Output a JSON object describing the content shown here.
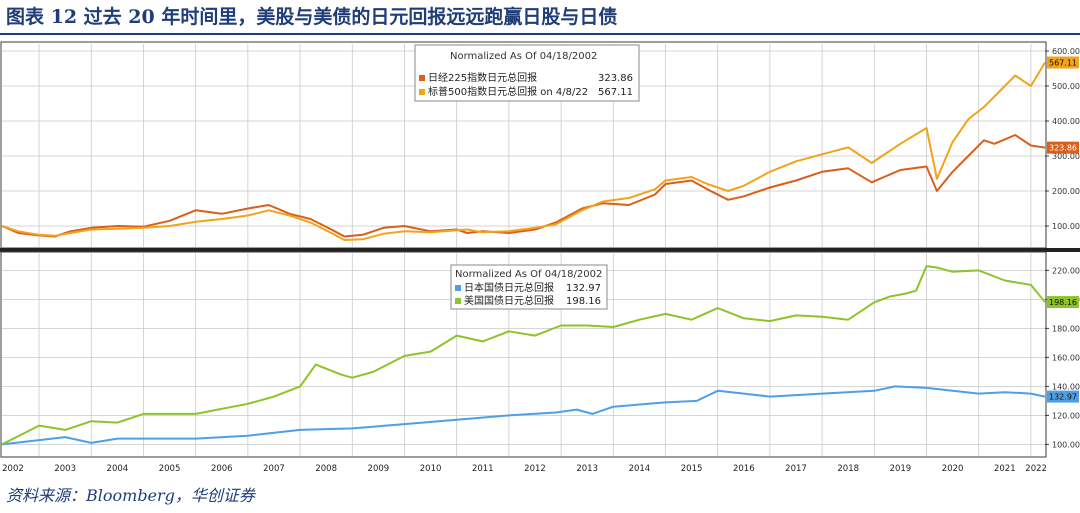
{
  "figure": {
    "title": "图表 12 过去 20 年时间里，美股与美债的日元回报远远跑赢日股与日债",
    "source": "资料来源：Bloomberg，华创证券"
  },
  "colors": {
    "nikkei": "#d95f1a",
    "sp500": "#f2a31b",
    "jgb": "#4f9fe6",
    "ust": "#8cc42a",
    "grid": "#c9c9c9",
    "frame": "#3c3c3c"
  },
  "chart_data": [
    {
      "type": "line",
      "panel": "top",
      "title": "Normalized As Of 04/18/2002",
      "xlim": [
        2002.29,
        2022.27
      ],
      "ylim": [
        40,
        620
      ],
      "yticks": [
        "100.00",
        "200.00",
        "300.00",
        "400.00",
        "500.00",
        "600.00"
      ],
      "ytick_values": [
        100,
        200,
        300,
        400,
        500,
        600
      ],
      "legend_placement": "top-center",
      "series": [
        {
          "name": "日经225指数日元总回报",
          "legend_value": "323.86",
          "last_label": "323.86",
          "color_key": "nikkei",
          "x": [
            2002.29,
            2002.6,
            2003.0,
            2003.3,
            2003.6,
            2004.0,
            2004.5,
            2005.0,
            2005.5,
            2006.0,
            2006.5,
            2007.0,
            2007.4,
            2007.8,
            2008.2,
            2008.6,
            2008.85,
            2009.2,
            2009.6,
            2010.0,
            2010.5,
            2011.0,
            2011.2,
            2011.5,
            2012.0,
            2012.5,
            2012.9,
            2013.4,
            2013.8,
            2014.3,
            2014.8,
            2015.0,
            2015.5,
            2015.8,
            2016.2,
            2016.5,
            2017.0,
            2017.5,
            2018.0,
            2018.5,
            2018.95,
            2019.5,
            2020.0,
            2020.2,
            2020.5,
            2020.8,
            2021.1,
            2021.3,
            2021.7,
            2022.0,
            2022.27
          ],
          "y": [
            100,
            80,
            73,
            70,
            85,
            95,
            100,
            98,
            115,
            145,
            135,
            150,
            160,
            135,
            120,
            90,
            70,
            75,
            95,
            100,
            85,
            90,
            80,
            85,
            80,
            90,
            110,
            150,
            165,
            160,
            190,
            220,
            230,
            205,
            175,
            185,
            210,
            230,
            255,
            265,
            225,
            260,
            270,
            200,
            255,
            300,
            345,
            335,
            360,
            330,
            323.86
          ]
        },
        {
          "name": "标普500指数日元总回报 on 4/8/22",
          "legend_value": "567.11",
          "last_label": "567.11",
          "color_key": "sp500",
          "x": [
            2002.29,
            2002.6,
            2003.0,
            2003.3,
            2003.6,
            2004.0,
            2004.5,
            2005.0,
            2005.5,
            2006.0,
            2006.5,
            2007.0,
            2007.4,
            2007.8,
            2008.2,
            2008.6,
            2008.85,
            2009.2,
            2009.6,
            2010.0,
            2010.5,
            2011.0,
            2011.2,
            2011.5,
            2012.0,
            2012.5,
            2012.9,
            2013.4,
            2013.8,
            2014.3,
            2014.8,
            2015.0,
            2015.5,
            2015.8,
            2016.2,
            2016.5,
            2017.0,
            2017.5,
            2018.0,
            2018.5,
            2018.95,
            2019.5,
            2020.0,
            2020.2,
            2020.5,
            2020.8,
            2021.1,
            2021.3,
            2021.7,
            2022.0,
            2022.27
          ],
          "y": [
            100,
            85,
            75,
            72,
            80,
            90,
            92,
            95,
            100,
            112,
            120,
            130,
            145,
            130,
            110,
            80,
            60,
            62,
            78,
            85,
            82,
            88,
            90,
            82,
            85,
            95,
            105,
            145,
            170,
            180,
            205,
            230,
            240,
            220,
            200,
            215,
            255,
            285,
            305,
            325,
            280,
            335,
            380,
            235,
            340,
            405,
            440,
            470,
            530,
            500,
            567.11
          ]
        }
      ]
    },
    {
      "type": "line",
      "panel": "bottom",
      "title": "Normalized As Of 04/18/2002",
      "xlim": [
        2002.29,
        2022.27
      ],
      "ylim": [
        92,
        232
      ],
      "yticks": [
        "100.00",
        "120.00",
        "140.00",
        "160.00",
        "180.00",
        "200.00",
        "220.00"
      ],
      "ytick_values": [
        100,
        120,
        140,
        160,
        180,
        200,
        220
      ],
      "legend_placement": "top-center",
      "series": [
        {
          "name": "日本国债日元总回报",
          "legend_value": "132.97",
          "last_label": "132.97",
          "color_key": "jgb",
          "x": [
            2002.29,
            2003.0,
            2003.5,
            2004.0,
            2004.5,
            2005.0,
            2006.0,
            2007.0,
            2008.0,
            2009.0,
            2010.0,
            2011.0,
            2012.0,
            2012.9,
            2013.3,
            2013.6,
            2014.0,
            2015.0,
            2015.6,
            2016.0,
            2016.5,
            2017.0,
            2018.0,
            2019.0,
            2019.4,
            2020.0,
            2020.5,
            2021.0,
            2021.5,
            2022.0,
            2022.27
          ],
          "y": [
            100,
            103,
            105,
            101,
            104,
            104,
            104,
            106,
            110,
            111,
            114,
            117,
            120,
            122,
            124,
            121,
            126,
            129,
            130,
            137,
            135,
            133,
            135,
            137,
            140,
            139,
            137,
            135,
            136,
            135,
            132.97
          ]
        },
        {
          "name": "美国国债日元总回报",
          "legend_value": "198.16",
          "last_label": "198.16",
          "color_key": "ust",
          "x": [
            2002.29,
            2003.0,
            2003.5,
            2004.0,
            2004.5,
            2005.0,
            2006.0,
            2007.0,
            2007.5,
            2008.0,
            2008.3,
            2008.8,
            2009.0,
            2009.4,
            2010.0,
            2010.5,
            2011.0,
            2011.5,
            2012.0,
            2012.5,
            2013.0,
            2013.5,
            2014.0,
            2014.5,
            2015.0,
            2015.5,
            2016.0,
            2016.5,
            2017.0,
            2017.5,
            2018.0,
            2018.5,
            2019.0,
            2019.3,
            2019.6,
            2019.8,
            2020.0,
            2020.2,
            2020.5,
            2021.0,
            2021.5,
            2022.0,
            2022.27
          ],
          "y": [
            100,
            113,
            110,
            116,
            115,
            121,
            121,
            128,
            133,
            140,
            155,
            148,
            146,
            150,
            161,
            164,
            175,
            171,
            178,
            175,
            182,
            182,
            181,
            186,
            190,
            186,
            194,
            187,
            185,
            189,
            188,
            186,
            198,
            202,
            204,
            206,
            223,
            222,
            219,
            220,
            213,
            210,
            198.16
          ]
        }
      ]
    }
  ],
  "x_axis": {
    "labels": [
      "2002",
      "2003",
      "2004",
      "2005",
      "2006",
      "2007",
      "2008",
      "2009",
      "2010",
      "2011",
      "2012",
      "2013",
      "2014",
      "2015",
      "2016",
      "2017",
      "2018",
      "2019",
      "2020",
      "2021",
      "2022"
    ],
    "values": [
      2002.5,
      2003.5,
      2004.5,
      2005.5,
      2006.5,
      2007.5,
      2008.5,
      2009.5,
      2010.5,
      2011.5,
      2012.5,
      2013.5,
      2014.5,
      2015.5,
      2016.5,
      2017.5,
      2018.5,
      2019.5,
      2020.5,
      2021.5,
      2022.1
    ]
  }
}
